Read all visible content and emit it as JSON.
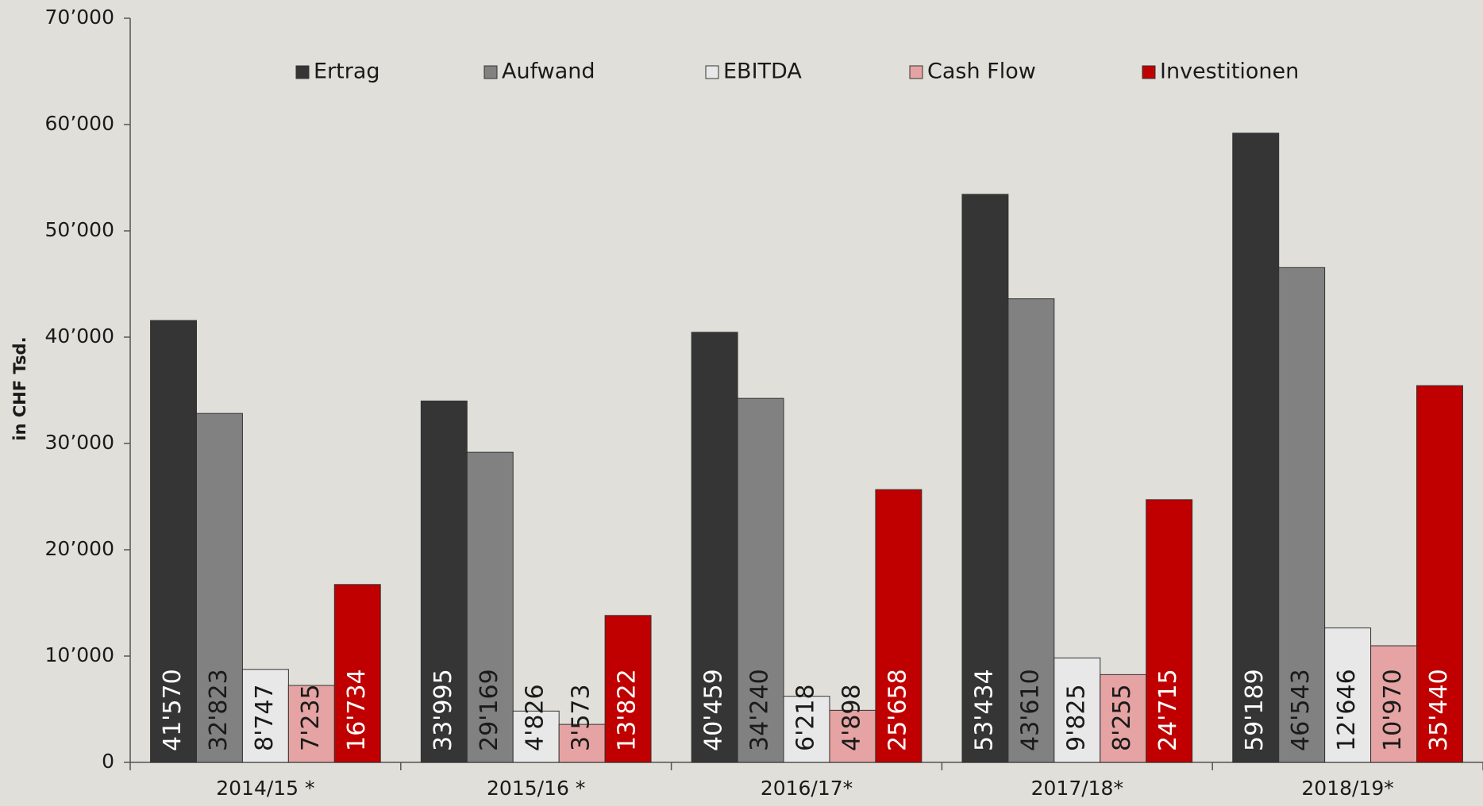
{
  "chart_data": {
    "type": "bar",
    "y_label": "in CHF Tsd.",
    "categories": [
      "2014/15 *",
      "2015/16 *",
      "2016/17*",
      "2017/18*",
      "2018/19*"
    ],
    "series": [
      {
        "name": "Ertrag",
        "color": "#353535",
        "label_color": "#ffffff",
        "values": [
          41570,
          33995,
          40459,
          53434,
          59189
        ],
        "value_labels": [
          "41'570",
          "33'995",
          "40'459",
          "53'434",
          "59'189"
        ]
      },
      {
        "name": "Aufwand",
        "color": "#818181",
        "label_color": "#1a1a1a",
        "values": [
          32823,
          29169,
          34240,
          43610,
          46543
        ],
        "value_labels": [
          "32'823",
          "29'169",
          "34'240",
          "43'610",
          "46'543"
        ]
      },
      {
        "name": "EBITDA",
        "color": "#e8e8e8",
        "label_color": "#1a1a1a",
        "values": [
          8747,
          4826,
          6218,
          9825,
          12646
        ],
        "value_labels": [
          "8'747",
          "4'826",
          "6'218",
          "9'825",
          "12'646"
        ]
      },
      {
        "name": "Cash Flow",
        "color": "#e6a3a3",
        "label_color": "#1a1a1a",
        "values": [
          7235,
          3573,
          4898,
          8255,
          10970
        ],
        "value_labels": [
          "7'235",
          "3'573",
          "4'898",
          "8'255",
          "10'970"
        ]
      },
      {
        "name": "Investitionen",
        "color": "#c00000",
        "label_color": "#ffffff",
        "values": [
          16734,
          13822,
          25658,
          24715,
          35440
        ],
        "value_labels": [
          "16'734",
          "13'822",
          "25'658",
          "24'715",
          "35'440"
        ]
      }
    ],
    "ylim": [
      0,
      70000
    ],
    "yticks": [
      {
        "value": 0,
        "label": "0"
      },
      {
        "value": 10000,
        "label": "10’000"
      },
      {
        "value": 20000,
        "label": "20’000"
      },
      {
        "value": 30000,
        "label": "30’000"
      },
      {
        "value": 40000,
        "label": "40’000"
      },
      {
        "value": 50000,
        "label": "50’000"
      },
      {
        "value": 60000,
        "label": "60’000"
      },
      {
        "value": 70000,
        "label": "70’000"
      }
    ],
    "grid": false,
    "legend": "top"
  }
}
